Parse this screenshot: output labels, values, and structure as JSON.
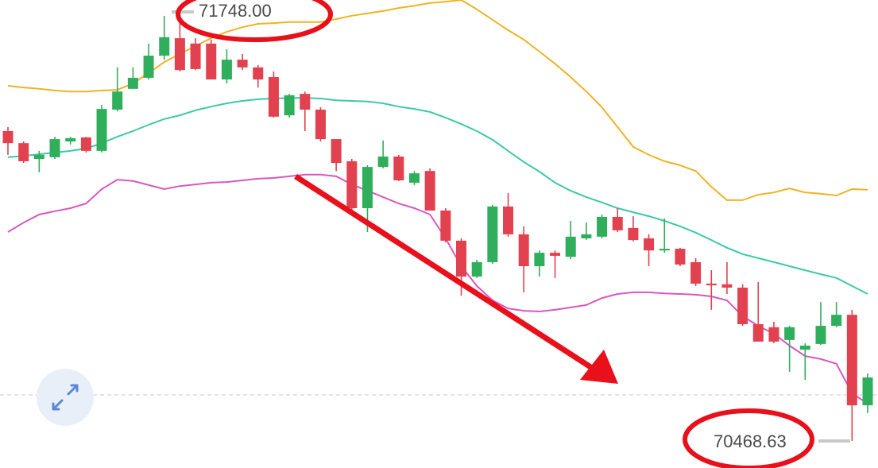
{
  "chart_data": {
    "type": "candlestick",
    "open": [
      71393,
      71357,
      71310,
      71315,
      71362,
      71374,
      71334,
      71457,
      71519,
      71552,
      71618,
      71670,
      71654,
      71654,
      71547,
      71606,
      71583,
      71554,
      71440,
      71504,
      71457,
      71369,
      71303,
      71163,
      71286,
      71317,
      71239,
      71274,
      71156,
      71066,
      70959,
      71002,
      71168,
      71085,
      70990,
      71030,
      71018,
      71073,
      71078,
      71137,
      71104,
      71073,
      71037,
      71042,
      71002,
      70938,
      70936,
      70926,
      70817,
      70808,
      70770,
      70741,
      70758,
      70812,
      70845,
      70575
    ],
    "high": [
      71405,
      71362,
      71334,
      71376,
      71376,
      71376,
      71471,
      71583,
      71583,
      71654,
      71737,
      71748,
      71670,
      71666,
      71637,
      71623,
      71590,
      71571,
      71504,
      71511,
      71464,
      71369,
      71310,
      71291,
      71365,
      71322,
      71274,
      71282,
      71163,
      71073,
      71009,
      71173,
      71208,
      71109,
      71037,
      71037,
      71125,
      71120,
      71144,
      71163,
      71139,
      71085,
      71132,
      71045,
      71014,
      70978,
      71002,
      70936,
      70943,
      70824,
      70812,
      70760,
      70883,
      70883,
      70860,
      70670
    ],
    "low": [
      71322,
      71298,
      71270,
      71310,
      71353,
      71329,
      71329,
      71452,
      71519,
      71547,
      71606,
      71571,
      71575,
      71547,
      71535,
      71575,
      71523,
      71433,
      71433,
      71393,
      71362,
      71274,
      71156,
      71092,
      71282,
      71244,
      71232,
      71156,
      71061,
      70902,
      70955,
      70997,
      71078,
      70912,
      70959,
      70955,
      71011,
      71068,
      71073,
      71092,
      71064,
      70990,
      71030,
      70990,
      70931,
      70860,
      70907,
      70812,
      70765,
      70760,
      70675,
      70651,
      70755,
      70808,
      70469,
      70552
    ],
    "close": [
      71357,
      71303,
      71322,
      71369,
      71372,
      71334,
      71459,
      71511,
      71552,
      71618,
      71673,
      71575,
      71578,
      71547,
      71606,
      71583,
      71547,
      71436,
      71500,
      71457,
      71369,
      71298,
      71163,
      71286,
      71317,
      71246,
      71267,
      71156,
      71066,
      70959,
      71002,
      71168,
      71085,
      70990,
      71030,
      71021,
      71078,
      71085,
      71137,
      71097,
      71068,
      71037,
      71042,
      70995,
      70938,
      70933,
      70926,
      70817,
      70765,
      70765,
      70808,
      70753,
      70812,
      70845,
      70575,
      70658
    ],
    "up_color": "#2fae5c",
    "down_color": "#e2414f",
    "series": [
      {
        "color": "#f0b323",
        "values": [
          71528,
          71523,
          71519,
          71514,
          71511,
          71511,
          71514,
          71516,
          71535,
          71566,
          71599,
          71623,
          71647,
          71670,
          71689,
          71703,
          71713,
          71715,
          71718,
          71718,
          71718,
          71727,
          71737,
          71744,
          71751,
          71760,
          71767,
          71775,
          71779,
          71784,
          71756,
          71725,
          71694,
          71666,
          71630,
          71594,
          71554,
          71511,
          71464,
          71405,
          71346,
          71322,
          71303,
          71291,
          71274,
          71227,
          71187,
          71187,
          71203,
          71210,
          71222,
          71210,
          71206,
          71201,
          71220,
          71218
        ]
      },
      {
        "color": "#3ccaa6",
        "values": [
          71315,
          71319,
          71324,
          71329,
          71334,
          71341,
          71357,
          71376,
          71393,
          71412,
          71429,
          71440,
          71455,
          71466,
          71476,
          71483,
          71488,
          71490,
          71492,
          71492,
          71490,
          71485,
          71483,
          71481,
          71476,
          71466,
          71459,
          71450,
          71433,
          71414,
          71393,
          71367,
          71334,
          71301,
          71272,
          71239,
          71215,
          71196,
          71180,
          71163,
          71151,
          71139,
          71125,
          71109,
          71090,
          71068,
          71045,
          71026,
          71014,
          71002,
          70990,
          70978,
          70966,
          70955,
          70931,
          70907
        ]
      },
      {
        "color": "#d957c0",
        "values": [
          71092,
          71120,
          71144,
          71154,
          71163,
          71177,
          71220,
          71248,
          71244,
          71232,
          71220,
          71229,
          71234,
          71239,
          71241,
          71246,
          71251,
          71253,
          71258,
          71263,
          71263,
          71258,
          71234,
          71215,
          71196,
          71177,
          71163,
          71144,
          71073,
          70990,
          70931,
          70888,
          70864,
          70857,
          70855,
          70860,
          70867,
          70874,
          70895,
          70907,
          70912,
          70912,
          70909,
          70907,
          70905,
          70900,
          70888,
          70841,
          70812,
          70789,
          70753,
          70722,
          70713,
          70699,
          70611,
          70580
        ]
      }
    ],
    "ylim": [
      70388,
      71784
    ],
    "annotations": [
      "71748.00",
      "70468.63"
    ]
  }
}
